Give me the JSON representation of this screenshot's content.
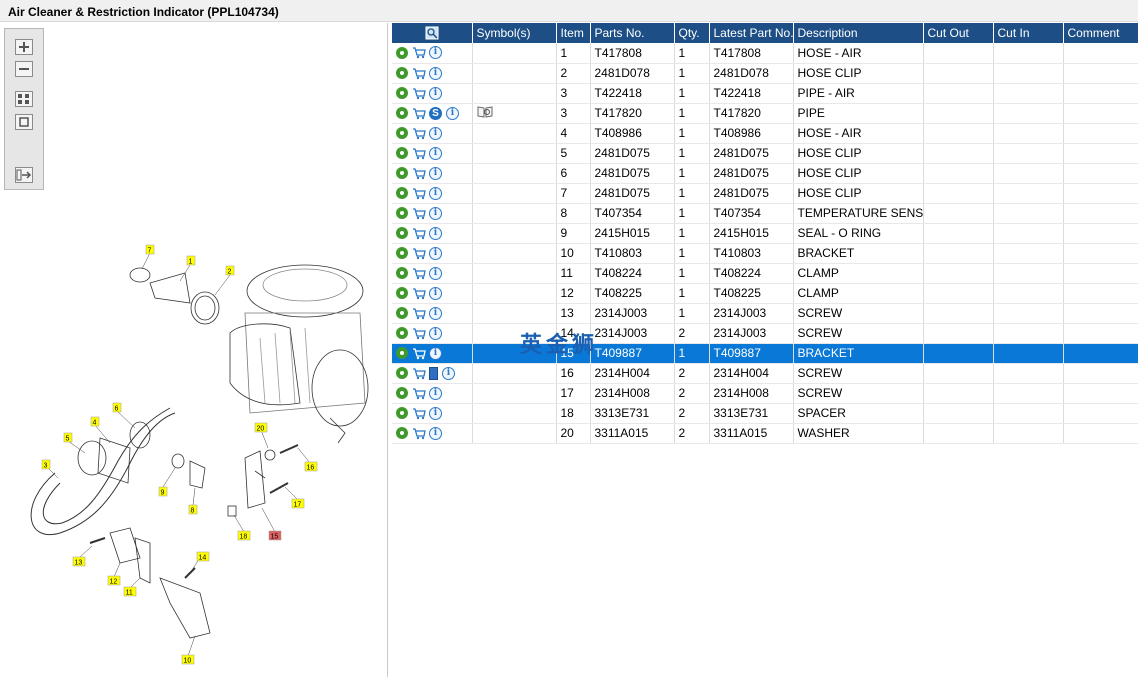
{
  "window": {
    "title": "Air Cleaner & Restriction Indicator (PPL104734)"
  },
  "watermark": "英金狮",
  "table": {
    "columns": [
      "",
      "Symbol(s)",
      "Item",
      "Parts No.",
      "Qty.",
      "Latest Part No.",
      "Description",
      "Cut Out",
      "Cut In",
      "Comment"
    ],
    "rows": [
      {
        "item": "1",
        "part": "T417808",
        "qty": "1",
        "latest": "T417808",
        "desc": "HOSE - AIR",
        "s_icon": false,
        "book_icon": false,
        "symbol": false,
        "selected": false
      },
      {
        "item": "2",
        "part": "2481D078",
        "qty": "1",
        "latest": "2481D078",
        "desc": "HOSE CLIP",
        "s_icon": false,
        "book_icon": false,
        "symbol": false,
        "selected": false
      },
      {
        "item": "3",
        "part": "T422418",
        "qty": "1",
        "latest": "T422418",
        "desc": "PIPE - AIR",
        "s_icon": false,
        "book_icon": false,
        "symbol": false,
        "selected": false
      },
      {
        "item": "3",
        "part": "T417820",
        "qty": "1",
        "latest": "T417820",
        "desc": "PIPE",
        "s_icon": true,
        "book_icon": false,
        "symbol": true,
        "selected": false
      },
      {
        "item": "4",
        "part": "T408986",
        "qty": "1",
        "latest": "T408986",
        "desc": "HOSE - AIR",
        "s_icon": false,
        "book_icon": false,
        "symbol": false,
        "selected": false
      },
      {
        "item": "5",
        "part": "2481D075",
        "qty": "1",
        "latest": "2481D075",
        "desc": "HOSE CLIP",
        "s_icon": false,
        "book_icon": false,
        "symbol": false,
        "selected": false
      },
      {
        "item": "6",
        "part": "2481D075",
        "qty": "1",
        "latest": "2481D075",
        "desc": "HOSE CLIP",
        "s_icon": false,
        "book_icon": false,
        "symbol": false,
        "selected": false
      },
      {
        "item": "7",
        "part": "2481D075",
        "qty": "1",
        "latest": "2481D075",
        "desc": "HOSE CLIP",
        "s_icon": false,
        "book_icon": false,
        "symbol": false,
        "selected": false
      },
      {
        "item": "8",
        "part": "T407354",
        "qty": "1",
        "latest": "T407354",
        "desc": "TEMPERATURE SENSOR",
        "s_icon": false,
        "book_icon": false,
        "symbol": false,
        "selected": false
      },
      {
        "item": "9",
        "part": "2415H015",
        "qty": "1",
        "latest": "2415H015",
        "desc": "SEAL - O RING",
        "s_icon": false,
        "book_icon": false,
        "symbol": false,
        "selected": false
      },
      {
        "item": "10",
        "part": "T410803",
        "qty": "1",
        "latest": "T410803",
        "desc": "BRACKET",
        "s_icon": false,
        "book_icon": false,
        "symbol": false,
        "selected": false
      },
      {
        "item": "11",
        "part": "T408224",
        "qty": "1",
        "latest": "T408224",
        "desc": "CLAMP",
        "s_icon": false,
        "book_icon": false,
        "symbol": false,
        "selected": false
      },
      {
        "item": "12",
        "part": "T408225",
        "qty": "1",
        "latest": "T408225",
        "desc": "CLAMP",
        "s_icon": false,
        "book_icon": false,
        "symbol": false,
        "selected": false
      },
      {
        "item": "13",
        "part": "2314J003",
        "qty": "1",
        "latest": "2314J003",
        "desc": "SCREW",
        "s_icon": false,
        "book_icon": false,
        "symbol": false,
        "selected": false
      },
      {
        "item": "14",
        "part": "2314J003",
        "qty": "2",
        "latest": "2314J003",
        "desc": "SCREW",
        "s_icon": false,
        "book_icon": false,
        "symbol": false,
        "selected": false
      },
      {
        "item": "15",
        "part": "T409887",
        "qty": "1",
        "latest": "T409887",
        "desc": "BRACKET",
        "s_icon": false,
        "book_icon": false,
        "symbol": false,
        "selected": true
      },
      {
        "item": "16",
        "part": "2314H004",
        "qty": "2",
        "latest": "2314H004",
        "desc": "SCREW",
        "s_icon": false,
        "book_icon": true,
        "symbol": false,
        "selected": false
      },
      {
        "item": "17",
        "part": "2314H008",
        "qty": "2",
        "latest": "2314H008",
        "desc": "SCREW",
        "s_icon": false,
        "book_icon": false,
        "symbol": false,
        "selected": false
      },
      {
        "item": "18",
        "part": "3313E731",
        "qty": "2",
        "latest": "3313E731",
        "desc": "SPACER",
        "s_icon": false,
        "book_icon": false,
        "symbol": false,
        "selected": false
      },
      {
        "item": "20",
        "part": "3311A015",
        "qty": "2",
        "latest": "3311A015",
        "desc": "WASHER",
        "s_icon": false,
        "book_icon": false,
        "symbol": false,
        "selected": false
      }
    ]
  },
  "diagram": {
    "callouts": [
      "7",
      "1",
      "2",
      "6",
      "4",
      "5",
      "3",
      "9",
      "8",
      "20",
      "16",
      "17",
      "18",
      "15",
      "13",
      "12",
      "11",
      "14",
      "10"
    ],
    "highlighted_callout": "15"
  },
  "colors": {
    "header": "#1d4f86",
    "selection": "#0a78d7",
    "callout": "#ffff00",
    "callout_selected": "#e06060"
  }
}
